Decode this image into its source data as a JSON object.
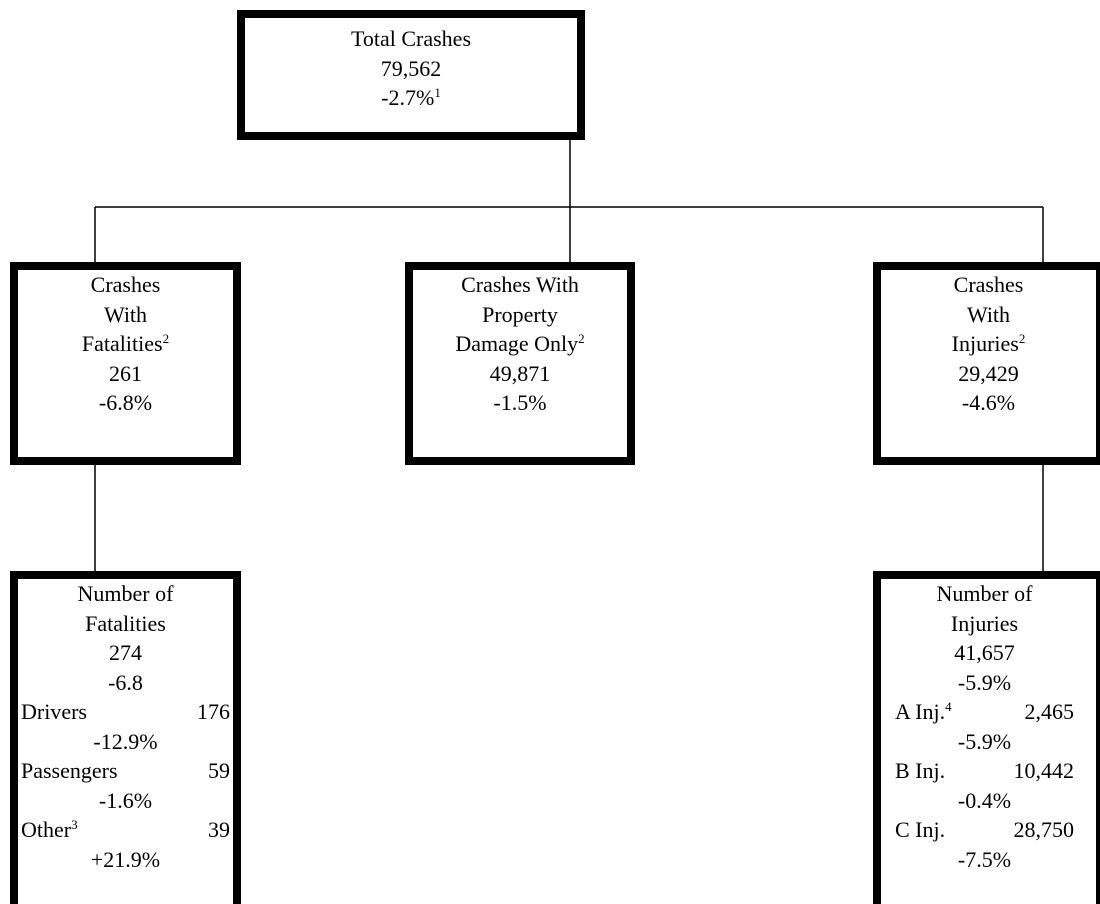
{
  "nodes": [
    {
      "lines": [
        {
          "text": "Total Crashes"
        },
        {
          "text": "79,562"
        },
        {
          "text": "-2.7%",
          "sup": "1"
        }
      ]
    },
    {
      "lines": [
        {
          "text": "Crashes"
        },
        {
          "text": "With"
        },
        {
          "text": "Fatalities",
          "sup": "2"
        },
        {
          "text": "261"
        },
        {
          "text": "-6.8%"
        }
      ]
    },
    {
      "lines": [
        {
          "text": "Crashes With"
        },
        {
          "text": "Property"
        },
        {
          "text": "Damage Only",
          "sup": "2"
        },
        {
          "text": "49,871"
        },
        {
          "text": "-1.5%"
        }
      ]
    },
    {
      "lines": [
        {
          "text": "Crashes"
        },
        {
          "text": "With"
        },
        {
          "text": "Injuries",
          "sup": "2"
        },
        {
          "text": "29,429"
        },
        {
          "text": "-4.6%"
        }
      ]
    },
    {
      "lines": [
        {
          "text": "Number of"
        },
        {
          "text": "Fatalities"
        },
        {
          "text": "274"
        },
        {
          "text": "-6.8"
        },
        {
          "label": "Drivers",
          "value": "176"
        },
        {
          "text": "-12.9%"
        },
        {
          "label": "Passengers",
          "value": "59"
        },
        {
          "text": "-1.6%"
        },
        {
          "label": "Other",
          "sup": "3",
          "value": "39"
        },
        {
          "text": "+21.9%"
        }
      ]
    },
    {
      "lines": [
        {
          "text": "Number of"
        },
        {
          "text": "Injuries"
        },
        {
          "text": "41,657"
        },
        {
          "text": "-5.9%"
        },
        {
          "label": "A Inj.",
          "sup": "4",
          "value": "2,465"
        },
        {
          "text": "-5.9%"
        },
        {
          "label": "B Inj.",
          "value": "10,442"
        },
        {
          "text": "-0.4%"
        },
        {
          "label": "C Inj.",
          "value": "28,750"
        },
        {
          "text": "-7.5%"
        }
      ]
    }
  ]
}
